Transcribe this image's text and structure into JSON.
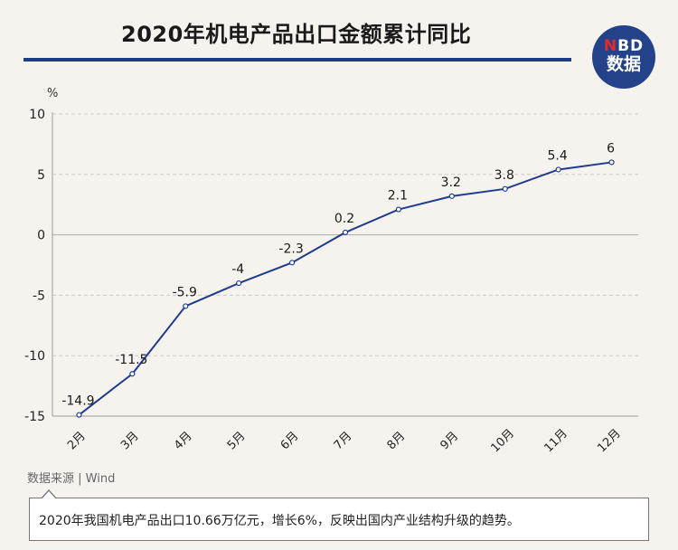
{
  "title": "2020年机电产品出口金额累计同比",
  "logo": {
    "line1_n": "N",
    "line1_rest": "BD",
    "line2": "数据"
  },
  "source": "数据来源 | Wind",
  "note": "2020年我国机电产品出口10.66万亿元，增长6%，反映出国内产业结构升级的趋势。",
  "chart_data": {
    "type": "line",
    "title": "2020年机电产品出口金额累计同比",
    "ylabel": "%",
    "xlabel": "",
    "categories": [
      "2月",
      "3月",
      "4月",
      "5月",
      "6月",
      "7月",
      "8月",
      "9月",
      "10月",
      "11月",
      "12月"
    ],
    "values": [
      -14.9,
      -11.5,
      -5.9,
      -4,
      -2.3,
      0.2,
      2.1,
      3.2,
      3.8,
      5.4,
      6
    ],
    "data_labels": [
      "-14.9",
      "-11.5",
      "-5.9",
      "-4",
      "-2.3",
      "0.2",
      "2.1",
      "3.2",
      "3.8",
      "5.4",
      "6"
    ],
    "ylim": [
      -15,
      10
    ],
    "yticks": [
      10,
      5,
      0,
      -5,
      -10,
      -15
    ],
    "grid": true,
    "colors": {
      "line": "#1e3c8f",
      "grid": "#c9c9c9",
      "axis": "#999999"
    }
  }
}
